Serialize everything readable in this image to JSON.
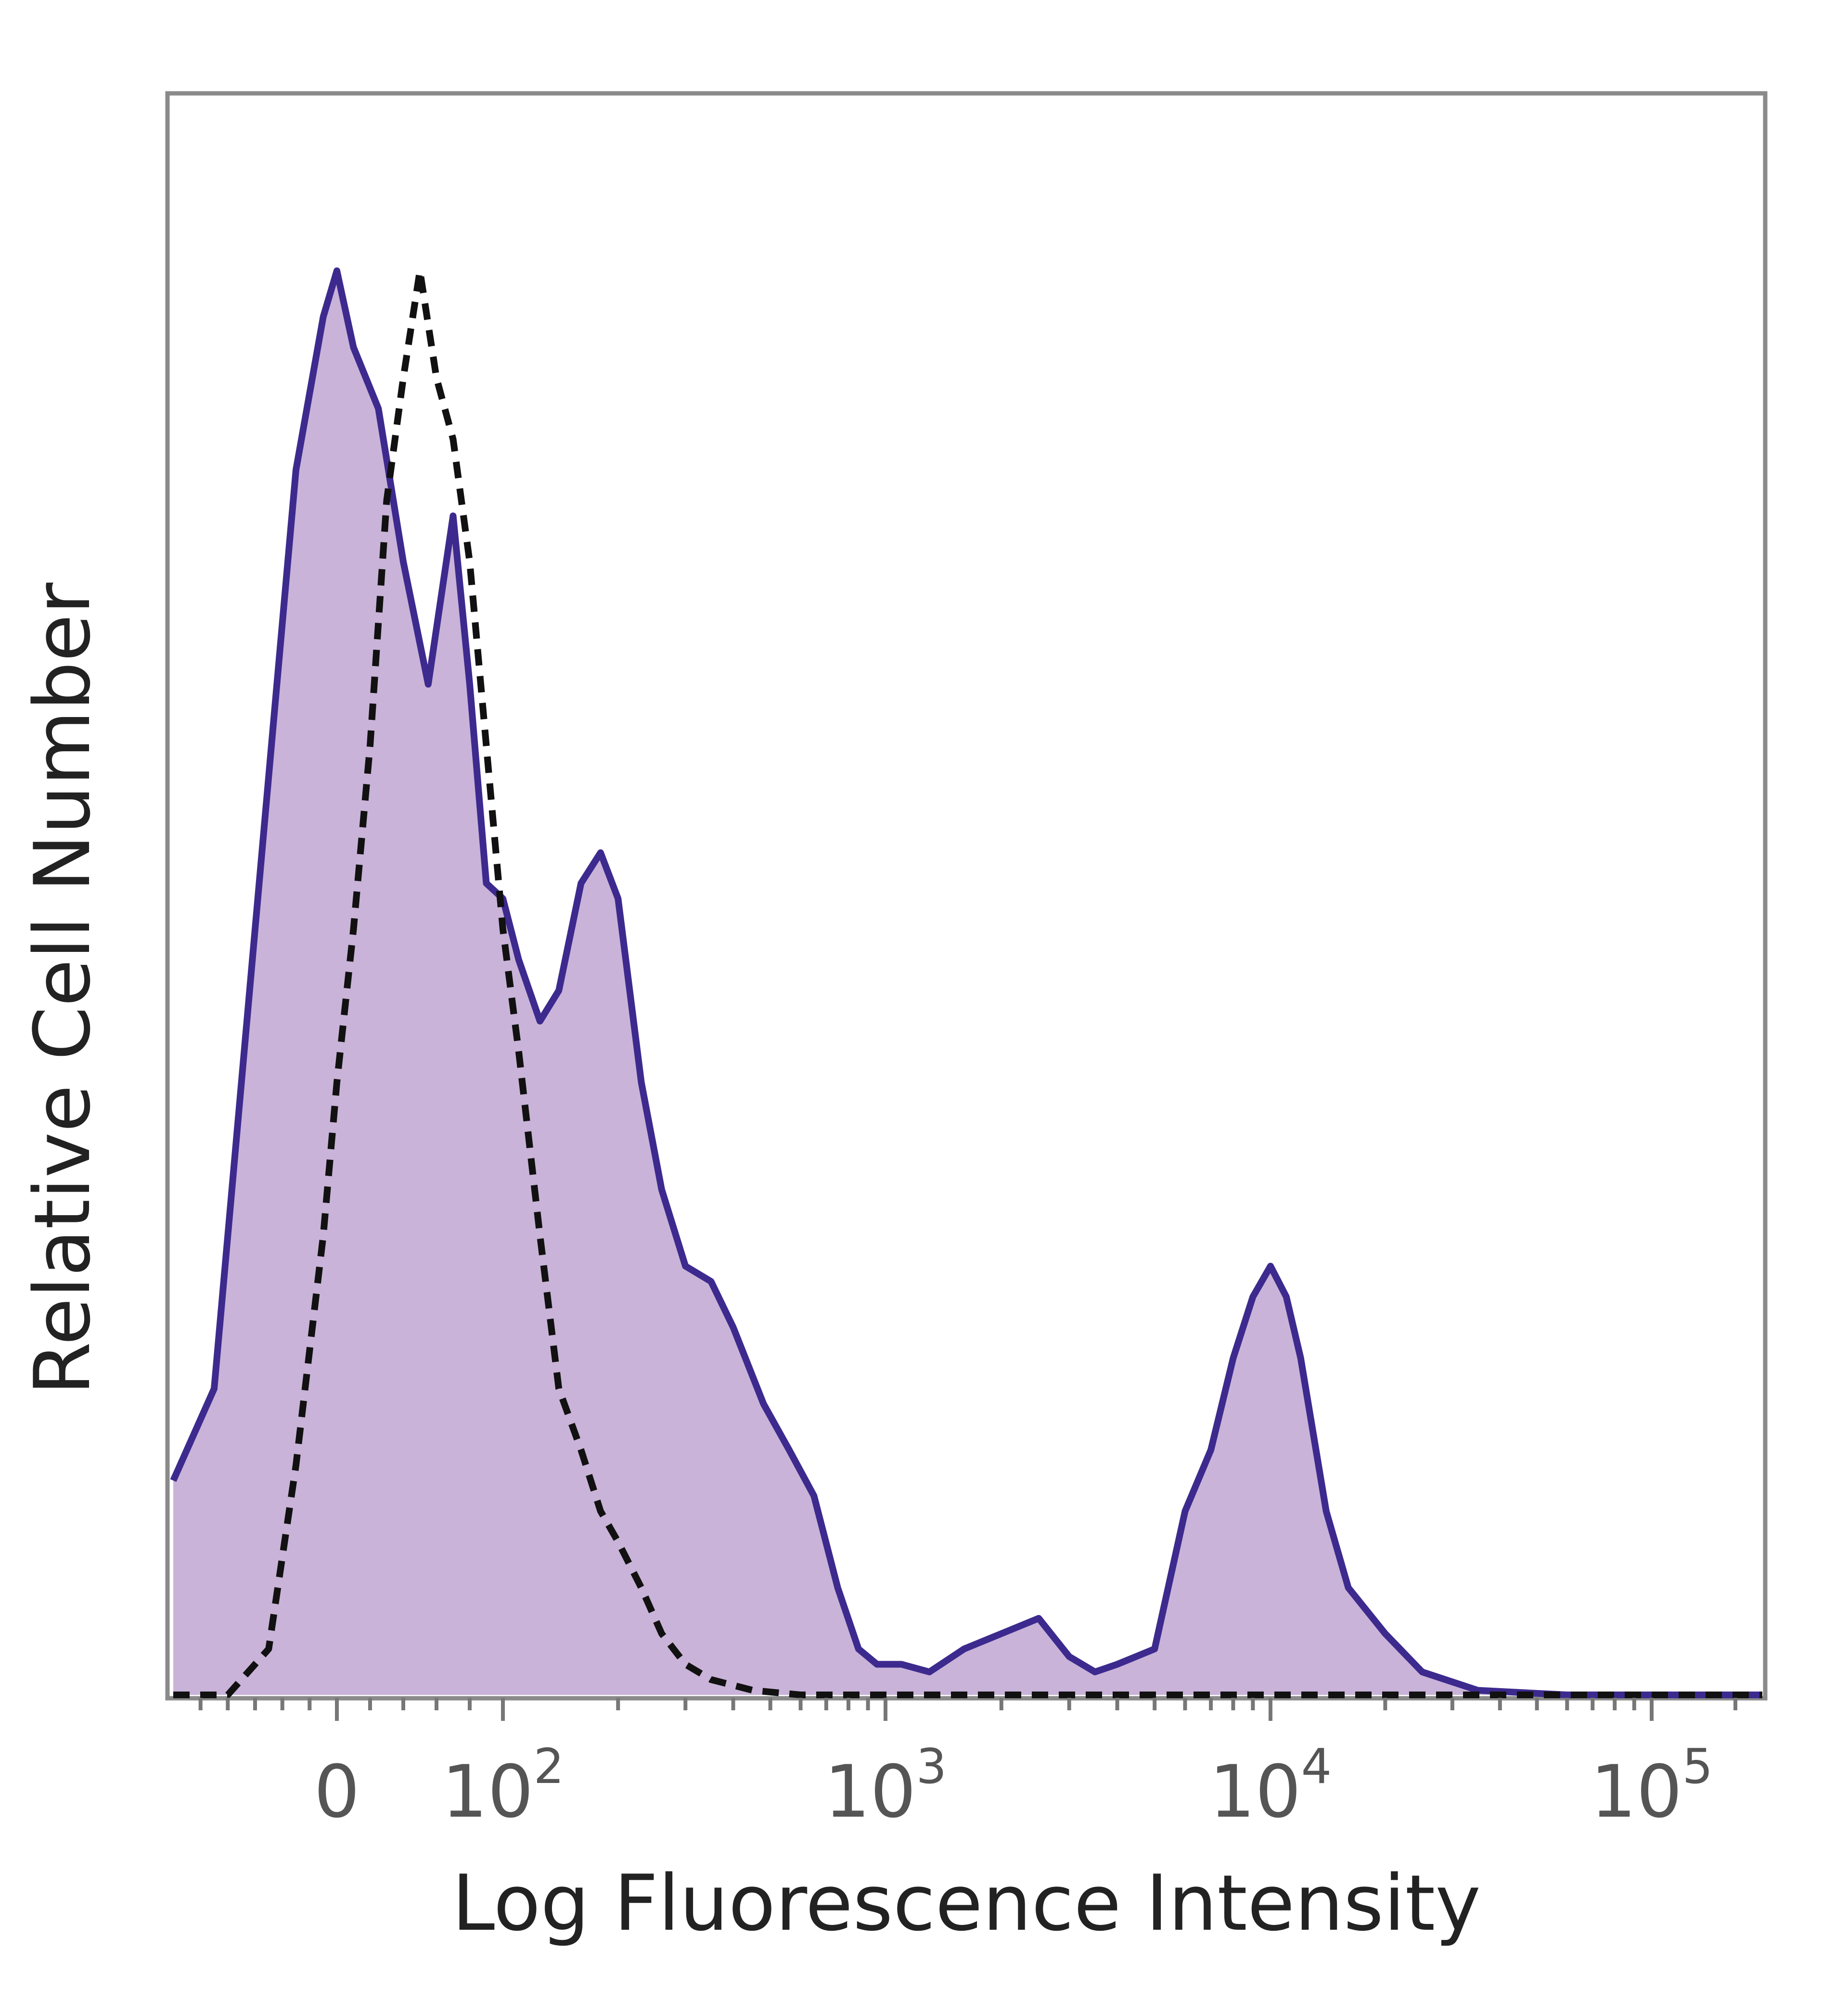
{
  "chart_data": {
    "type": "area",
    "title": "",
    "xlabel": "Log Fluorescence Intensity",
    "ylabel": "Relative Cell Number",
    "x_scale": "biexponential",
    "x_ticks": [
      {
        "value": 0,
        "label": "0",
        "sup": ""
      },
      {
        "value": 100,
        "label": "10",
        "sup": "2"
      },
      {
        "value": 1000,
        "label": "10",
        "sup": "3"
      },
      {
        "value": 10000,
        "label": "10",
        "sup": "4"
      },
      {
        "value": 100000,
        "label": "10",
        "sup": "5"
      }
    ],
    "xlim": [
      -120,
      250000
    ],
    "ylim": [
      0,
      100
    ],
    "grid": false,
    "legend": "none",
    "series": [
      {
        "style": "filled",
        "line_color": "#3d2a8e",
        "fill_color": "#c9b3d8",
        "x": [
          -120,
          -90,
          -60,
          -30,
          -10,
          0,
          10,
          25,
          40,
          55,
          70,
          80,
          90,
          100,
          110,
          125,
          140,
          160,
          180,
          200,
          230,
          260,
          300,
          350,
          400,
          480,
          560,
          650,
          750,
          850,
          950,
          1100,
          1300,
          1600,
          2000,
          2500,
          3000,
          3500,
          4000,
          5000,
          6000,
          7000,
          8000,
          9000,
          10000,
          11000,
          12000,
          14000,
          16000,
          20000,
          25000,
          35000,
          60000,
          100000,
          180000,
          250000
        ],
        "y": [
          14,
          20,
          50,
          80,
          90,
          93,
          88,
          84,
          74,
          66,
          77,
          66,
          53,
          52,
          48,
          44,
          46,
          53,
          55,
          52,
          40,
          33,
          28,
          27,
          24,
          19,
          16,
          13,
          7,
          3,
          2,
          2,
          1.5,
          3,
          4,
          5,
          2.5,
          1.5,
          2,
          3,
          12,
          16,
          22,
          26,
          28,
          26,
          22,
          12,
          7,
          4,
          1.5,
          0.3,
          0,
          0,
          0,
          0
        ]
      },
      {
        "style": "dashed",
        "line_color": "#111111",
        "x": [
          -120,
          -80,
          -50,
          -30,
          -10,
          0,
          10,
          20,
          30,
          40,
          50,
          60,
          70,
          80,
          90,
          100,
          110,
          125,
          140,
          160,
          180,
          200,
          230,
          260,
          300,
          350,
          450,
          600,
          1000,
          10000,
          100000,
          250000
        ],
        "y": [
          0,
          0,
          3,
          15,
          30,
          40,
          50,
          62,
          78,
          86,
          93,
          86,
          82,
          74,
          62,
          50,
          42,
          30,
          20,
          16,
          12,
          10,
          7,
          4,
          2,
          1,
          0.3,
          0,
          0,
          0,
          0,
          0
        ]
      }
    ]
  }
}
